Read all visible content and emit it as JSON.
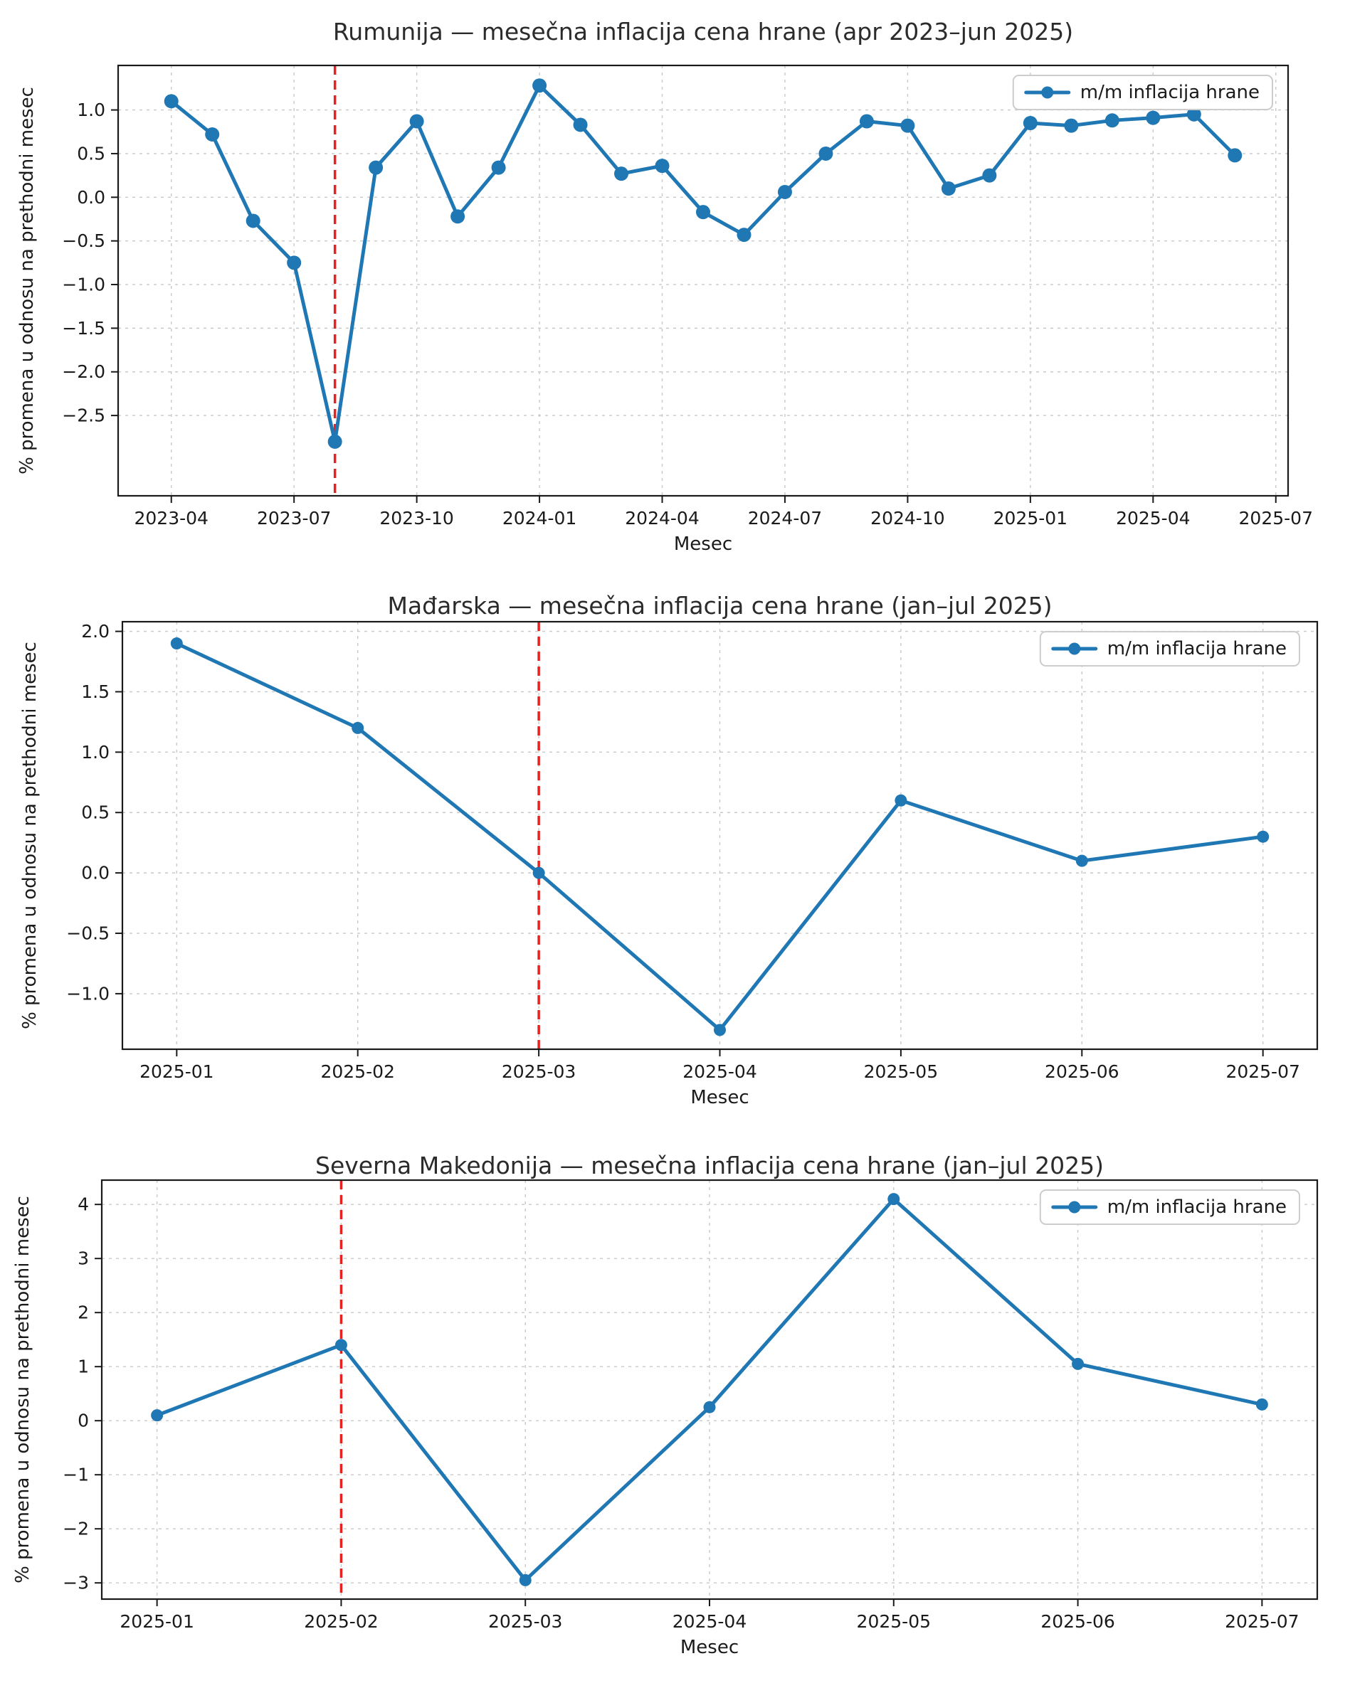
{
  "page": {
    "background": "#ffffff"
  },
  "colors": {
    "series_blue": "#1f77b4",
    "event_red": "#e82020",
    "grid_gray": "#c8c8c8",
    "spine_black": "#1a1a1a"
  },
  "chart_data": [
    {
      "type": "line",
      "title": "Rumunija — mesečna inflacija cena hrane (apr 2023–jun 2025)",
      "xlabel": "Mesec",
      "ylabel": "% promena u odnosu na prethodni mesec",
      "grid": true,
      "legend_position": "upper right",
      "x_ticks": [
        "2023-04",
        "2023-07",
        "2023-10",
        "2024-01",
        "2024-04",
        "2024-07",
        "2024-10",
        "2025-01",
        "2025-04",
        "2025-07"
      ],
      "y_ticks": [
        "1.0",
        "0.5",
        "0.0",
        "−0.5",
        "−1.0",
        "−1.5",
        "−2.0",
        "−2.5"
      ],
      "ylim": [
        -3.42,
        1.51
      ],
      "xlim": [
        -1.3,
        27.3
      ],
      "red_vline": {
        "x": "2023-08",
        "color": "#e82020",
        "style": "dashed"
      },
      "series": [
        {
          "name": "m/m inflacija hrane",
          "color": "#1f77b4",
          "x": [
            "2023-04",
            "2023-05",
            "2023-06",
            "2023-07",
            "2023-08",
            "2023-09",
            "2023-10",
            "2023-11",
            "2023-12",
            "2024-01",
            "2024-02",
            "2024-03",
            "2024-04",
            "2024-05",
            "2024-06",
            "2024-07",
            "2024-08",
            "2024-09",
            "2024-10",
            "2024-11",
            "2024-12",
            "2025-01",
            "2025-02",
            "2025-03",
            "2025-04",
            "2025-05",
            "2025-06"
          ],
          "values": [
            1.1,
            0.72,
            -0.27,
            -0.75,
            -2.8,
            0.34,
            0.87,
            -0.22,
            0.34,
            1.28,
            0.83,
            0.27,
            0.36,
            -0.17,
            -0.43,
            0.06,
            0.5,
            0.87,
            0.82,
            0.1,
            0.25,
            0.85,
            0.82,
            0.88,
            0.91,
            0.95,
            0.48
          ]
        }
      ]
    },
    {
      "type": "line",
      "title": "Mađarska — mesečna inflacija cena hrane (jan–jul 2025)",
      "xlabel": "Mesec",
      "ylabel": "% promena u odnosu na prethodni mesec",
      "grid": true,
      "legend_position": "upper right",
      "x_ticks": [
        "2025-01",
        "2025-02",
        "2025-03",
        "2025-04",
        "2025-05",
        "2025-06",
        "2025-07"
      ],
      "y_ticks": [
        "2.0",
        "1.5",
        "1.0",
        "0.5",
        "0.0",
        "−0.5",
        "−1.0"
      ],
      "ylim": [
        -1.46,
        2.08
      ],
      "xlim": [
        -0.3,
        6.3
      ],
      "red_vline": {
        "x": "2025-03",
        "color": "#e82020",
        "style": "dashed"
      },
      "series": [
        {
          "name": "m/m inflacija hrane",
          "color": "#1f77b4",
          "x": [
            "2025-01",
            "2025-02",
            "2025-03",
            "2025-04",
            "2025-05",
            "2025-06",
            "2025-07"
          ],
          "values": [
            1.9,
            1.2,
            0.0,
            -1.3,
            0.6,
            0.1,
            0.3
          ]
        }
      ]
    },
    {
      "type": "line",
      "title": "Severna Makedonija — mesečna inflacija cena hrane (jan–jul 2025)",
      "xlabel": "Mesec",
      "ylabel": "% promena u odnosu na prethodni mesec",
      "grid": true,
      "legend_position": "upper right",
      "x_ticks": [
        "2025-01",
        "2025-02",
        "2025-03",
        "2025-04",
        "2025-05",
        "2025-06",
        "2025-07"
      ],
      "y_ticks": [
        "4",
        "3",
        "2",
        "1",
        "0",
        "−1",
        "−2",
        "−3"
      ],
      "ylim": [
        -3.3,
        4.45
      ],
      "xlim": [
        -0.3,
        6.3
      ],
      "red_vline": {
        "x": "2025-02",
        "color": "#e82020",
        "style": "dashed"
      },
      "series": [
        {
          "name": "m/m inflacija hrane",
          "color": "#1f77b4",
          "x": [
            "2025-01",
            "2025-02",
            "2025-03",
            "2025-04",
            "2025-05",
            "2025-06",
            "2025-07"
          ],
          "values": [
            0.1,
            1.4,
            -2.95,
            0.25,
            4.1,
            1.05,
            0.3
          ]
        }
      ]
    }
  ]
}
